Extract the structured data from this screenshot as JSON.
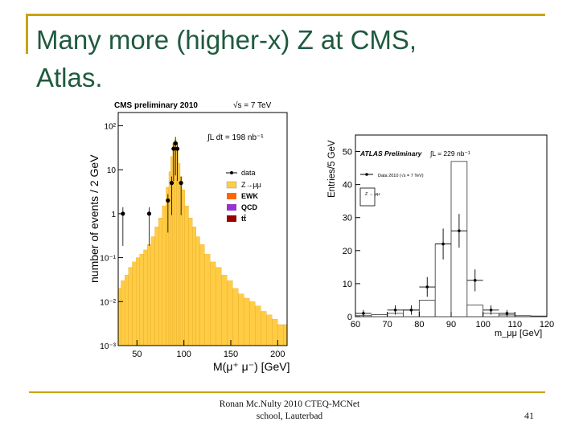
{
  "slide": {
    "title_line1": "Many more (higher-x) Z at CMS,",
    "title_line2": "Atlas.",
    "footer_line1": "Ronan Mc.Nulty 2010 CTEQ-MCNet",
    "footer_line2": "school, Lauterbad",
    "page_number": "41"
  },
  "colors": {
    "accent_gold": "#c9a500",
    "title_green": "#1f5a3f",
    "z_fill": "#ffcc44",
    "ewk": "#ff6600",
    "qcd": "#9933cc",
    "ttbar": "#990000"
  },
  "cms_plot": {
    "header_left": "CMS preliminary 2010",
    "header_right": "√s = 7 TeV",
    "lumi": "∫L dt = 198 nb⁻¹",
    "ylabel": "number of events / 2 GeV",
    "xlabel": "M(μ⁺ μ⁻) [GeV]",
    "xticks": [
      "50",
      "100",
      "150",
      "200"
    ],
    "yticks": [
      "10²",
      "10",
      "1",
      "10⁻¹",
      "10⁻²",
      "10⁻³"
    ],
    "legend": [
      "data",
      "Z→μμ",
      "EWK",
      "QCD",
      "tt̄"
    ]
  },
  "atlas_plot": {
    "title": "ATLAS Preliminary",
    "lumi": "∫L = 229 nb⁻¹",
    "ylabel": "Entries/5 GeV",
    "xlabel": "m_μμ [GeV]",
    "xticks": [
      "60",
      "70",
      "80",
      "90",
      "100",
      "110",
      "120"
    ],
    "yticks": [
      "0",
      "10",
      "20",
      "30",
      "40",
      "50"
    ],
    "legend_data": "Data 2010 (√s = 7 TeV)",
    "legend_mc": "Z → μμ"
  },
  "chart_data": [
    {
      "type": "bar",
      "title": "CMS preliminary 2010",
      "xlabel": "M(μ⁺ μ⁻) [GeV]",
      "ylabel": "number of events / 2 GeV",
      "yscale": "log",
      "xlim": [
        30,
        210
      ],
      "ylim": [
        0.001,
        200
      ],
      "series": [
        {
          "name": "Z→μμ",
          "x": [
            31,
            35,
            39,
            43,
            47,
            51,
            55,
            59,
            63,
            67,
            71,
            75,
            79,
            83,
            85,
            87,
            89,
            91,
            93,
            95,
            97,
            99,
            103,
            107,
            111,
            115,
            119,
            125,
            131,
            137,
            143,
            149,
            155,
            161,
            167,
            173,
            179,
            185,
            191,
            197,
            203,
            209
          ],
          "values": [
            0.02,
            0.03,
            0.04,
            0.06,
            0.08,
            0.1,
            0.12,
            0.15,
            0.2,
            0.3,
            0.5,
            0.8,
            1.5,
            4,
            9,
            20,
            40,
            48,
            30,
            14,
            7,
            3.5,
            1.5,
            0.8,
            0.5,
            0.3,
            0.2,
            0.12,
            0.08,
            0.06,
            0.04,
            0.03,
            0.02,
            0.015,
            0.012,
            0.01,
            0.008,
            0.006,
            0.005,
            0.004,
            0.003,
            0.003
          ]
        },
        {
          "name": "data",
          "x": [
            35,
            63,
            83,
            87,
            89,
            91,
            93,
            97
          ],
          "values": [
            1,
            1,
            2,
            5,
            30,
            40,
            30,
            5
          ]
        }
      ]
    },
    {
      "type": "bar",
      "title": "ATLAS Preliminary",
      "xlabel": "m_μμ [GeV]",
      "ylabel": "Entries/5 GeV",
      "xlim": [
        60,
        120
      ],
      "ylim": [
        0,
        55
      ],
      "series": [
        {
          "name": "Z → μμ",
          "x": [
            62.5,
            67.5,
            72.5,
            77.5,
            82.5,
            87.5,
            92.5,
            97.5,
            102.5,
            107.5,
            112.5,
            117.5
          ],
          "values": [
            0.3,
            0.6,
            1.0,
            2.0,
            5.0,
            22,
            47,
            3.5,
            1.0,
            0.5,
            0.3,
            0.2
          ]
        },
        {
          "name": "Data 2010 (√s = 7 TeV)",
          "x": [
            62.5,
            72.5,
            77.5,
            82.5,
            87.5,
            92.5,
            97.5,
            102.5,
            107.5
          ],
          "values": [
            1,
            2,
            2,
            9,
            22,
            26,
            11,
            2,
            1
          ]
        }
      ]
    }
  ]
}
